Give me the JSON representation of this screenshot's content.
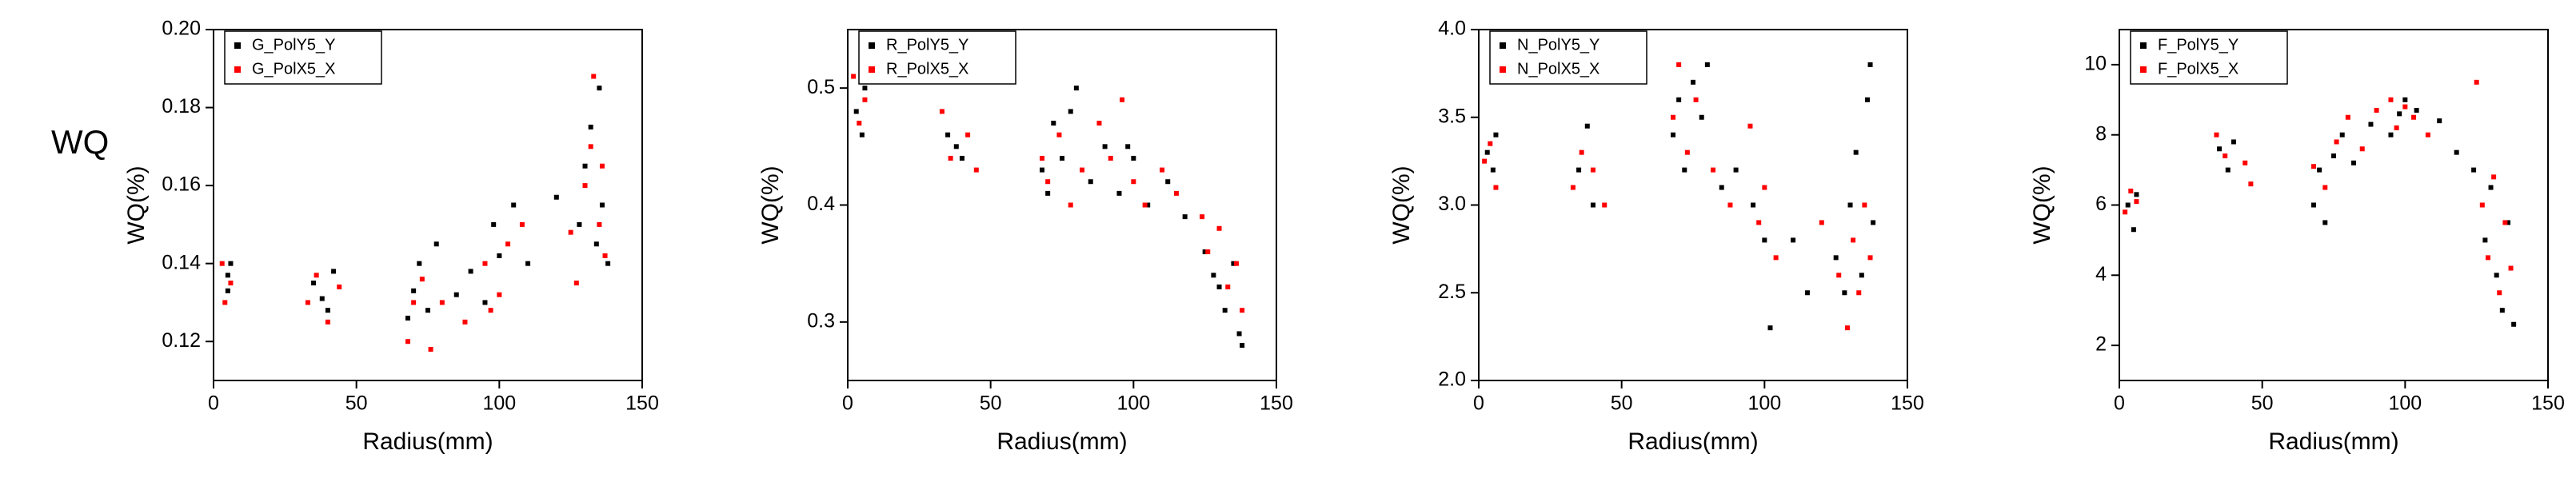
{
  "row_label": "WQ",
  "chart_data": [
    {
      "type": "scatter",
      "xlabel": "Radius(mm)",
      "ylabel": "WQ(%)",
      "xlim": [
        0,
        150
      ],
      "ylim": [
        0.11,
        0.2
      ],
      "xticks": [
        0,
        50,
        100,
        150
      ],
      "yticks": [
        0.12,
        0.14,
        0.16,
        0.18,
        {
          "value": 0.2,
          "label": "0.20"
        }
      ],
      "legend": "upper left",
      "series": [
        {
          "name": "G_PolY5_Y",
          "color": "#000000",
          "x": [
            5,
            5,
            6,
            35,
            38,
            40,
            42,
            68,
            70,
            72,
            75,
            78,
            85,
            90,
            95,
            98,
            100,
            105,
            110,
            120,
            128,
            130,
            132,
            134,
            135,
            136,
            138
          ],
          "values": [
            0.137,
            0.133,
            0.14,
            0.135,
            0.131,
            0.128,
            0.138,
            0.126,
            0.133,
            0.14,
            0.128,
            0.145,
            0.132,
            0.138,
            0.13,
            0.15,
            0.142,
            0.155,
            0.14,
            0.157,
            0.15,
            0.165,
            0.175,
            0.145,
            0.185,
            0.155,
            0.14
          ]
        },
        {
          "name": "G_PolX5_X",
          "color": "#ff0000",
          "x": [
            3,
            4,
            6,
            33,
            36,
            40,
            44,
            68,
            70,
            73,
            76,
            80,
            88,
            95,
            97,
            100,
            103,
            108,
            125,
            127,
            130,
            132,
            133,
            135,
            136,
            137
          ],
          "values": [
            0.14,
            0.13,
            0.135,
            0.13,
            0.137,
            0.125,
            0.134,
            0.12,
            0.13,
            0.136,
            0.118,
            0.13,
            0.125,
            0.14,
            0.128,
            0.132,
            0.145,
            0.15,
            0.148,
            0.135,
            0.16,
            0.17,
            0.188,
            0.15,
            0.165,
            0.142
          ]
        }
      ]
    },
    {
      "type": "scatter",
      "xlabel": "Radius(mm)",
      "ylabel": "WQ(%)",
      "xlim": [
        0,
        150
      ],
      "ylim": [
        0.25,
        0.55
      ],
      "xticks": [
        0,
        50,
        100,
        150
      ],
      "yticks": [
        0.3,
        0.4,
        0.5
      ],
      "legend": "upper left",
      "series": [
        {
          "name": "R_PolY5_Y",
          "color": "#000000",
          "x": [
            3,
            5,
            6,
            35,
            38,
            40,
            68,
            70,
            72,
            75,
            78,
            80,
            85,
            90,
            95,
            98,
            100,
            105,
            112,
            118,
            125,
            128,
            130,
            132,
            135,
            137,
            138
          ],
          "values": [
            0.48,
            0.46,
            0.5,
            0.46,
            0.45,
            0.44,
            0.43,
            0.41,
            0.47,
            0.44,
            0.48,
            0.5,
            0.42,
            0.45,
            0.41,
            0.45,
            0.44,
            0.4,
            0.42,
            0.39,
            0.36,
            0.34,
            0.33,
            0.31,
            0.35,
            0.29,
            0.28
          ]
        },
        {
          "name": "R_PolX5_X",
          "color": "#ff0000",
          "x": [
            2,
            4,
            6,
            33,
            36,
            42,
            45,
            68,
            70,
            74,
            78,
            82,
            88,
            92,
            96,
            100,
            104,
            110,
            115,
            124,
            126,
            130,
            133,
            136,
            138
          ],
          "values": [
            0.51,
            0.47,
            0.49,
            0.48,
            0.44,
            0.46,
            0.43,
            0.44,
            0.42,
            0.46,
            0.4,
            0.43,
            0.47,
            0.44,
            0.49,
            0.42,
            0.4,
            0.43,
            0.41,
            0.39,
            0.36,
            0.38,
            0.33,
            0.35,
            0.31
          ]
        }
      ]
    },
    {
      "type": "scatter",
      "xlabel": "Radius(mm)",
      "ylabel": "WQ(%)",
      "xlim": [
        0,
        150
      ],
      "ylim": [
        2.0,
        4.0
      ],
      "xticks": [
        0,
        50,
        100,
        150
      ],
      "yticks": [
        {
          "value": 2,
          "label": "2.0"
        },
        2.5,
        {
          "value": 3,
          "label": "3.0"
        },
        3.5,
        {
          "value": 4,
          "label": "4.0"
        }
      ],
      "legend": "upper left",
      "series": [
        {
          "name": "N_PolY5_Y",
          "color": "#000000",
          "x": [
            3,
            5,
            6,
            35,
            38,
            40,
            68,
            70,
            72,
            75,
            78,
            80,
            85,
            90,
            96,
            100,
            102,
            110,
            115,
            125,
            128,
            130,
            132,
            134,
            136,
            137,
            138
          ],
          "values": [
            3.3,
            3.2,
            3.4,
            3.2,
            3.45,
            3.0,
            3.4,
            3.6,
            3.2,
            3.7,
            3.5,
            3.8,
            3.1,
            3.2,
            3.0,
            2.8,
            2.3,
            2.8,
            2.5,
            2.7,
            2.5,
            3.0,
            3.3,
            2.6,
            3.6,
            3.8,
            2.9
          ]
        },
        {
          "name": "N_PolX5_X",
          "color": "#ff0000",
          "x": [
            2,
            4,
            6,
            33,
            36,
            40,
            44,
            68,
            70,
            73,
            76,
            82,
            88,
            95,
            98,
            100,
            104,
            120,
            126,
            129,
            131,
            133,
            135,
            137
          ],
          "values": [
            3.25,
            3.35,
            3.1,
            3.1,
            3.3,
            3.2,
            3.0,
            3.5,
            3.8,
            3.3,
            3.6,
            3.2,
            3.0,
            3.45,
            2.9,
            3.1,
            2.7,
            2.9,
            2.6,
            2.3,
            2.8,
            2.5,
            3.0,
            2.7
          ]
        }
      ]
    },
    {
      "type": "scatter",
      "xlabel": "Radius(mm)",
      "ylabel": "WQ(%)",
      "xlim": [
        0,
        150
      ],
      "ylim": [
        1,
        11
      ],
      "xticks": [
        0,
        50,
        100,
        150
      ],
      "yticks": [
        2,
        4,
        6,
        8,
        10
      ],
      "legend": "upper left",
      "series": [
        {
          "name": "F_PolY5_Y",
          "color": "#000000",
          "x": [
            3,
            5,
            6,
            35,
            38,
            40,
            68,
            70,
            72,
            75,
            78,
            82,
            88,
            95,
            98,
            100,
            104,
            112,
            118,
            124,
            128,
            130,
            132,
            134,
            136,
            138
          ],
          "values": [
            6.0,
            5.3,
            6.3,
            7.6,
            7.0,
            7.8,
            6.0,
            7.0,
            5.5,
            7.4,
            8.0,
            7.2,
            8.3,
            8.0,
            8.6,
            9.0,
            8.7,
            8.4,
            7.5,
            7.0,
            5.0,
            6.5,
            4.0,
            3.0,
            5.5,
            2.6
          ]
        },
        {
          "name": "F_PolX5_X",
          "color": "#ff0000",
          "x": [
            2,
            4,
            6,
            34,
            37,
            44,
            46,
            68,
            72,
            76,
            80,
            85,
            90,
            95,
            97,
            100,
            103,
            108,
            125,
            127,
            129,
            131,
            133,
            135,
            137
          ],
          "values": [
            5.8,
            6.4,
            6.1,
            8.0,
            7.4,
            7.2,
            6.6,
            7.1,
            6.5,
            7.8,
            8.5,
            7.6,
            8.7,
            9.0,
            8.2,
            8.8,
            8.5,
            8.0,
            9.5,
            6.0,
            4.5,
            6.8,
            3.5,
            5.5,
            4.2
          ]
        }
      ]
    }
  ]
}
